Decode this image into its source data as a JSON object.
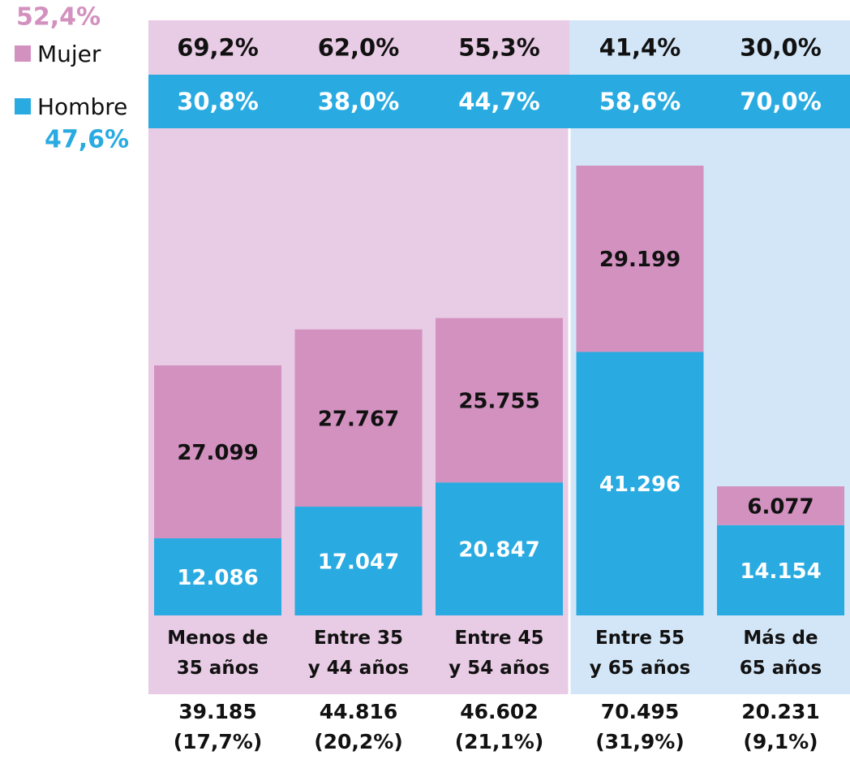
{
  "chart_data": {
    "type": "bar",
    "stacked": true,
    "categories": [
      "Menos de\n35 años",
      "Entre 35\ny 44 años",
      "Entre 45\ny 54 años",
      "Entre 55\ny 65 años",
      "Más de\n65 años"
    ],
    "background_colors": [
      "#e8cbe4",
      "#e8cbe4",
      "#e8cbe4",
      "#d3e6f8",
      "#d3e6f8"
    ],
    "series": [
      {
        "name": "Hombre",
        "color": "#29abe2",
        "label_color": "#ffffff",
        "values": [
          12086,
          17047,
          20847,
          41296,
          14154
        ],
        "value_labels": [
          "12.086",
          "17.047",
          "20.847",
          "41.296",
          "14.154"
        ],
        "total_share": 47.6,
        "total_share_label": "47,6%",
        "shares": [
          30.8,
          38.0,
          44.7,
          58.6,
          70.0
        ],
        "share_labels": [
          "30,8%",
          "38,0%",
          "44,7%",
          "58,6%",
          "70,0%"
        ]
      },
      {
        "name": "Mujer",
        "color": "#d291bf",
        "label_color": "#111111",
        "values": [
          27099,
          27767,
          25755,
          29199,
          6077
        ],
        "value_labels": [
          "27.099",
          "27.767",
          "25.755",
          "29.199",
          "6.077"
        ],
        "total_share": 52.4,
        "total_share_label": "52,4%",
        "shares": [
          69.2,
          62.0,
          55.3,
          41.4,
          30.0
        ],
        "share_labels": [
          "69,2%",
          "62,0%",
          "55,3%",
          "41,4%",
          "30,0%"
        ]
      }
    ],
    "totals": {
      "values": [
        39185,
        44816,
        46602,
        70495,
        20231
      ],
      "value_labels": [
        "39.185",
        "44.816",
        "46.602",
        "70.495",
        "20.231"
      ]
    },
    "total_shares": {
      "values": [
        17.7,
        20.2,
        21.1,
        31.9,
        9.1
      ],
      "value_labels": [
        "(17,7%)",
        "(20,2%)",
        "(21,1%)",
        "(31,9%)",
        "(9,1%)"
      ]
    }
  }
}
